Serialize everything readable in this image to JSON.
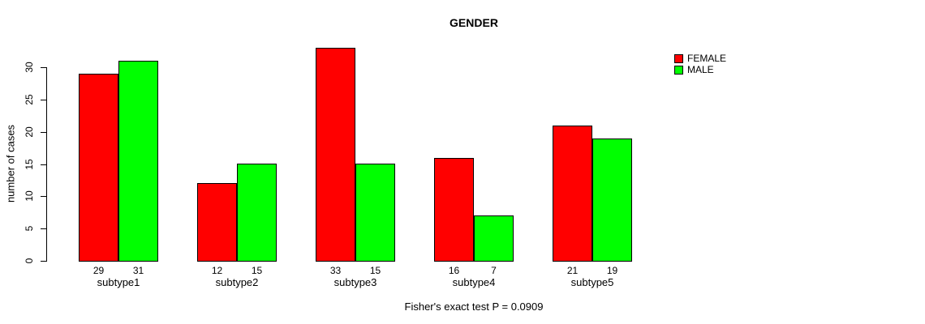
{
  "title": "GENDER",
  "y_axis": {
    "label": "number of cases",
    "ticks": [
      0,
      5,
      10,
      15,
      20,
      25,
      30
    ]
  },
  "legend": {
    "items": [
      {
        "label": "FEMALE",
        "color": "#ff0000"
      },
      {
        "label": "MALE",
        "color": "#00ff00"
      }
    ]
  },
  "caption": "Fisher's exact test P = 0.0909",
  "chart_data": {
    "type": "bar",
    "title": "GENDER",
    "categories": [
      "subtype1",
      "subtype2",
      "subtype3",
      "subtype4",
      "subtype5"
    ],
    "series": [
      {
        "name": "FEMALE",
        "color": "#ff0000",
        "values": [
          29,
          12,
          33,
          16,
          21
        ]
      },
      {
        "name": "MALE",
        "color": "#00ff00",
        "values": [
          31,
          15,
          15,
          7,
          19
        ]
      }
    ],
    "xlabel": "",
    "ylabel": "number of cases",
    "ylim": [
      0,
      33
    ],
    "yticks": [
      0,
      5,
      10,
      15,
      20,
      25,
      30
    ],
    "bar_value_labels_shown": true,
    "legend_position": "top-right",
    "grid": false,
    "annotation": "Fisher's exact test P = 0.0909"
  }
}
